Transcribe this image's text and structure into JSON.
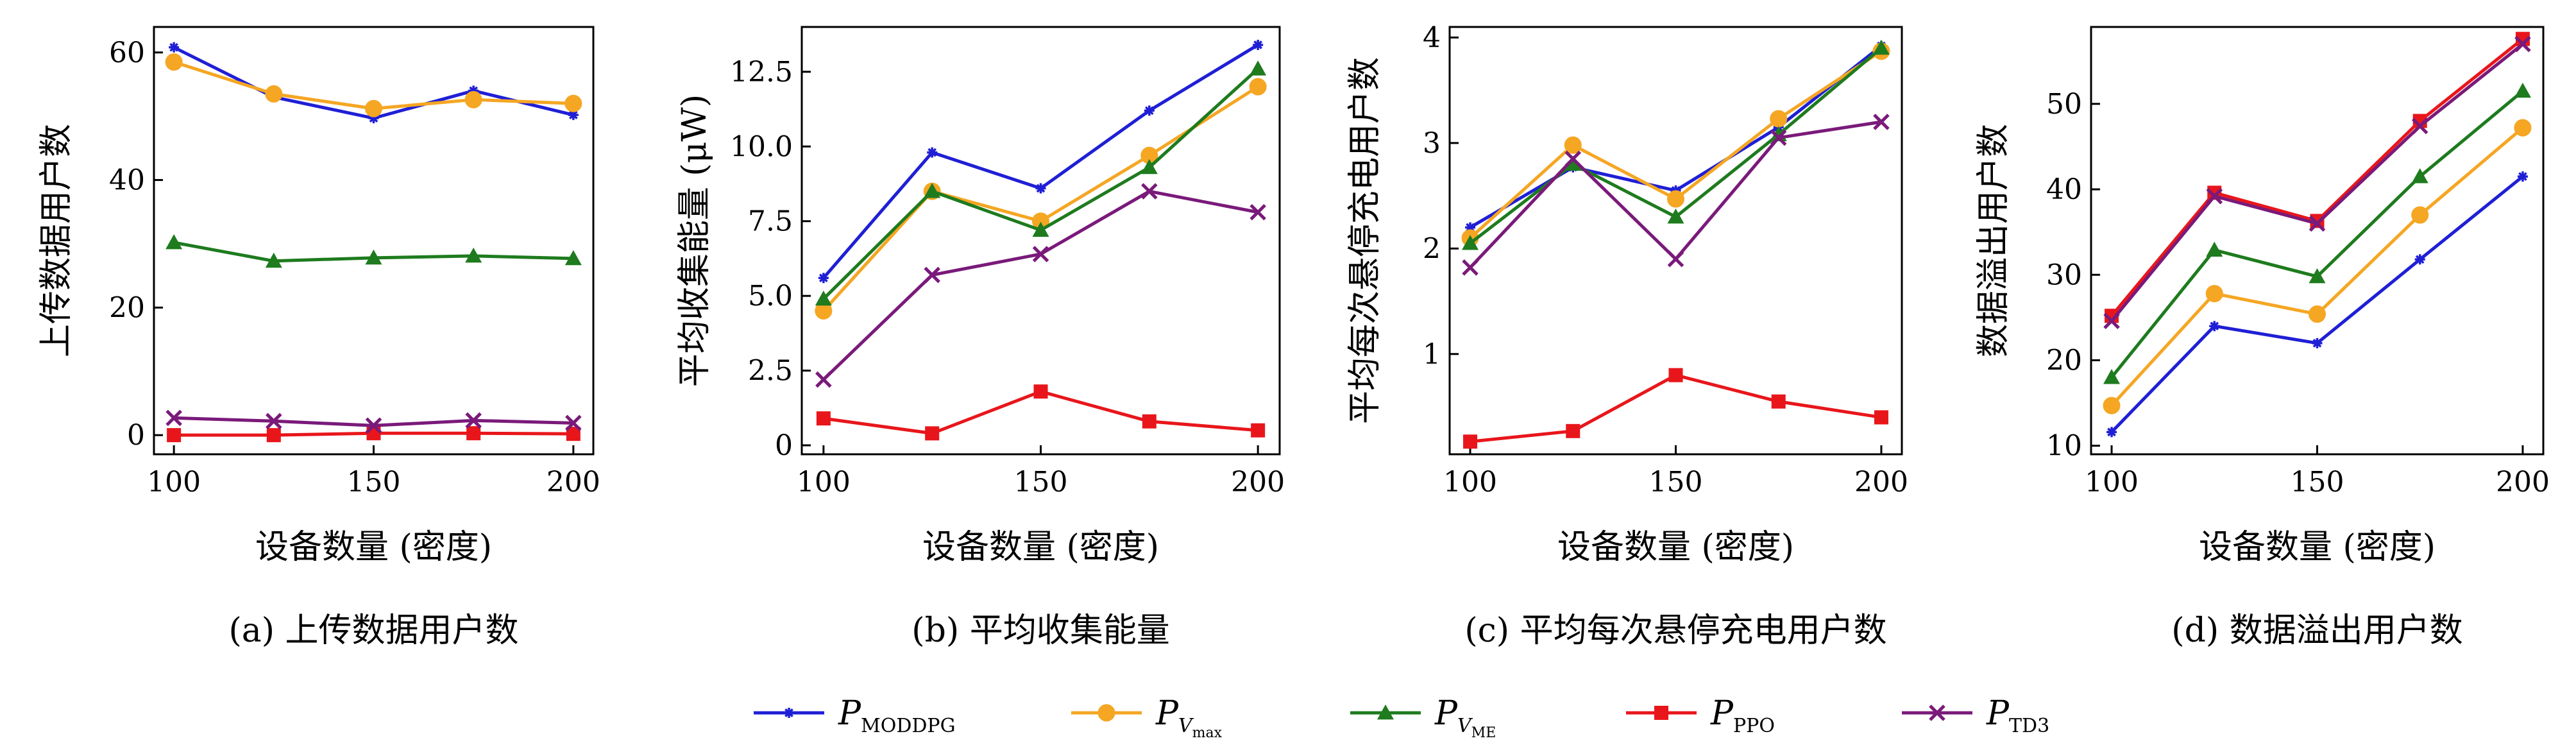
{
  "colors": {
    "P_MODDPG": "#1f1fd6",
    "P_Vmax": "#f5a623",
    "P_VME": "#1e7b1e",
    "P_PPO": "#e8161b",
    "P_TD3": "#7a1a7a"
  },
  "legend": [
    {
      "key": "P_MODDPG",
      "main": "P",
      "sub": "MODDPG",
      "subsub": "",
      "marker": "star"
    },
    {
      "key": "P_Vmax",
      "main": "P",
      "sub": "V",
      "subsub": "max",
      "marker": "circle"
    },
    {
      "key": "P_VME",
      "main": "P",
      "sub": "V",
      "subsub": "ME",
      "marker": "triangle"
    },
    {
      "key": "P_PPO",
      "main": "P",
      "sub": "PPO",
      "subsub": "",
      "marker": "square"
    },
    {
      "key": "P_TD3",
      "main": "P",
      "sub": "TD3",
      "subsub": "",
      "marker": "x"
    }
  ],
  "chart_data": [
    {
      "type": "line",
      "caption": "(a) 上传数据用户数",
      "xlabel": "设备数量 (密度)",
      "ylabel": "上传数据用户数",
      "x": [
        100,
        125,
        150,
        175,
        200
      ],
      "xticks": [
        100,
        150,
        200
      ],
      "yticks": [
        0,
        20,
        40,
        60
      ],
      "xlim": [
        95,
        205
      ],
      "ylim": [
        -3,
        64
      ],
      "series": [
        {
          "key": "P_MODDPG",
          "values": [
            60.8,
            53.0,
            49.7,
            54.0,
            50.2
          ]
        },
        {
          "key": "P_Vmax",
          "values": [
            58.5,
            53.5,
            51.2,
            52.6,
            52.0
          ]
        },
        {
          "key": "P_VME",
          "values": [
            30.2,
            27.3,
            27.8,
            28.1,
            27.7
          ]
        },
        {
          "key": "P_PPO",
          "values": [
            0.0,
            0.0,
            0.3,
            0.3,
            0.2
          ]
        },
        {
          "key": "P_TD3",
          "values": [
            2.7,
            2.2,
            1.5,
            2.3,
            1.9
          ]
        }
      ]
    },
    {
      "type": "line",
      "caption": "(b) 平均收集能量",
      "xlabel": "设备数量 (密度)",
      "ylabel": "平均收集能量 (μW)",
      "x": [
        100,
        125,
        150,
        175,
        200
      ],
      "xticks": [
        100,
        150,
        200
      ],
      "yticks": [
        "0",
        "2.5",
        "5.0",
        "7.5",
        "10.0",
        "12.5"
      ],
      "ytick_values": [
        0,
        2.5,
        5.0,
        7.5,
        10.0,
        12.5
      ],
      "xlim": [
        95,
        205
      ],
      "ylim": [
        -0.3,
        14.0
      ],
      "series": [
        {
          "key": "P_MODDPG",
          "values": [
            5.6,
            9.8,
            8.6,
            11.2,
            13.4
          ]
        },
        {
          "key": "P_Vmax",
          "values": [
            4.5,
            8.5,
            7.5,
            9.7,
            12.0
          ]
        },
        {
          "key": "P_VME",
          "values": [
            4.9,
            8.5,
            7.2,
            9.3,
            12.6
          ]
        },
        {
          "key": "P_PPO",
          "values": [
            0.9,
            0.4,
            1.8,
            0.8,
            0.5
          ]
        },
        {
          "key": "P_TD3",
          "values": [
            2.2,
            5.7,
            6.4,
            8.5,
            7.8
          ]
        }
      ]
    },
    {
      "type": "line",
      "caption": "(c) 平均每次悬停充电用户数",
      "xlabel": "设备数量 (密度)",
      "ylabel": "平均每次悬停充电用户数",
      "x": [
        100,
        125,
        150,
        175,
        200
      ],
      "xticks": [
        100,
        150,
        200
      ],
      "yticks": [
        1,
        2,
        3,
        4
      ],
      "xlim": [
        95,
        205
      ],
      "ylim": [
        0.05,
        4.1
      ],
      "series": [
        {
          "key": "P_MODDPG",
          "values": [
            2.2,
            2.77,
            2.55,
            3.15,
            3.92
          ]
        },
        {
          "key": "P_Vmax",
          "values": [
            2.1,
            2.98,
            2.47,
            3.23,
            3.87
          ]
        },
        {
          "key": "P_VME",
          "values": [
            2.05,
            2.8,
            2.3,
            3.08,
            3.9
          ]
        },
        {
          "key": "P_PPO",
          "values": [
            0.17,
            0.27,
            0.8,
            0.55,
            0.4
          ]
        },
        {
          "key": "P_TD3",
          "values": [
            1.82,
            2.85,
            1.9,
            3.05,
            3.2
          ]
        }
      ]
    },
    {
      "type": "line",
      "caption": "(d) 数据溢出用户数",
      "xlabel": "设备数量 (密度)",
      "ylabel": "数据溢出用户数",
      "x": [
        100,
        125,
        150,
        175,
        200
      ],
      "xticks": [
        100,
        150,
        200
      ],
      "yticks": [
        10,
        20,
        30,
        40,
        50
      ],
      "xlim": [
        95,
        205
      ],
      "ylim": [
        9,
        59
      ],
      "series": [
        {
          "key": "P_MODDPG",
          "values": [
            11.6,
            24.0,
            22.0,
            31.8,
            41.5
          ]
        },
        {
          "key": "P_Vmax",
          "values": [
            14.7,
            27.8,
            25.4,
            37.0,
            47.2
          ]
        },
        {
          "key": "P_VME",
          "values": [
            18.0,
            32.9,
            29.8,
            41.5,
            51.5
          ]
        },
        {
          "key": "P_PPO",
          "values": [
            25.2,
            39.6,
            36.3,
            48.0,
            57.6
          ]
        },
        {
          "key": "P_TD3",
          "values": [
            24.6,
            39.2,
            36.0,
            47.4,
            57.0
          ]
        }
      ]
    }
  ]
}
